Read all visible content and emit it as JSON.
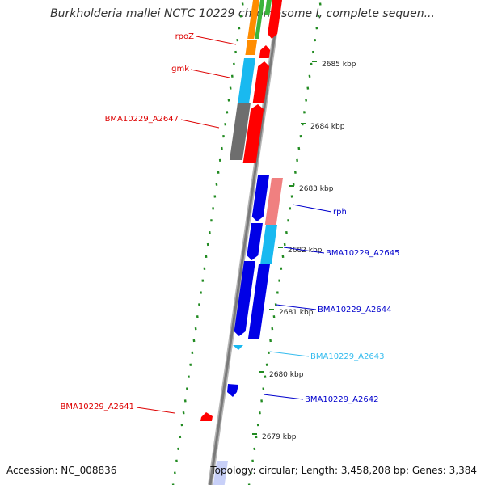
{
  "title": "Burkholderia mallei NCTC 10229 chromosome I, complete sequen...",
  "footer": {
    "accession": "Accession: NC_008836",
    "summary": "Topology: circular; Length: 3,458,208 bp; Genes: 3,384"
  },
  "colors": {
    "orange": "#ff8c00",
    "green": "#3cb43c",
    "red": "#ff0000",
    "cyan": "#19b9f0",
    "gray": "#6e6e6e",
    "blue": "#0000e6",
    "pink": "#f08080",
    "tick_green": "#228b22",
    "backbone": "#8c8c8c",
    "label_red": "#dd0000",
    "label_blue": "#0000cc",
    "label_cyan": "#33bbee"
  },
  "scale_ticks": [
    "2685 kbp",
    "2684 kbp",
    "2683 kbp",
    "2682 kbp",
    "2681 kbp",
    "2680 kbp",
    "2679 kbp"
  ],
  "gene_labels": [
    {
      "text": "rpoZ",
      "color": "red"
    },
    {
      "text": "gmk",
      "color": "red"
    },
    {
      "text": "BMA10229_A2647",
      "color": "red"
    },
    {
      "text": "rph",
      "color": "blue"
    },
    {
      "text": "BMA10229_A2645",
      "color": "blue"
    },
    {
      "text": "BMA10229_A2644",
      "color": "blue"
    },
    {
      "text": "BMA10229_A2643",
      "color": "cyan"
    },
    {
      "text": "BMA10229_A2642",
      "color": "blue"
    },
    {
      "text": "BMA10229_A2641",
      "color": "red"
    }
  ],
  "icons": {
    "backbone": "chromosome-backbone",
    "forward_track": "forward-strand-track",
    "reverse_track": "reverse-strand-track"
  }
}
